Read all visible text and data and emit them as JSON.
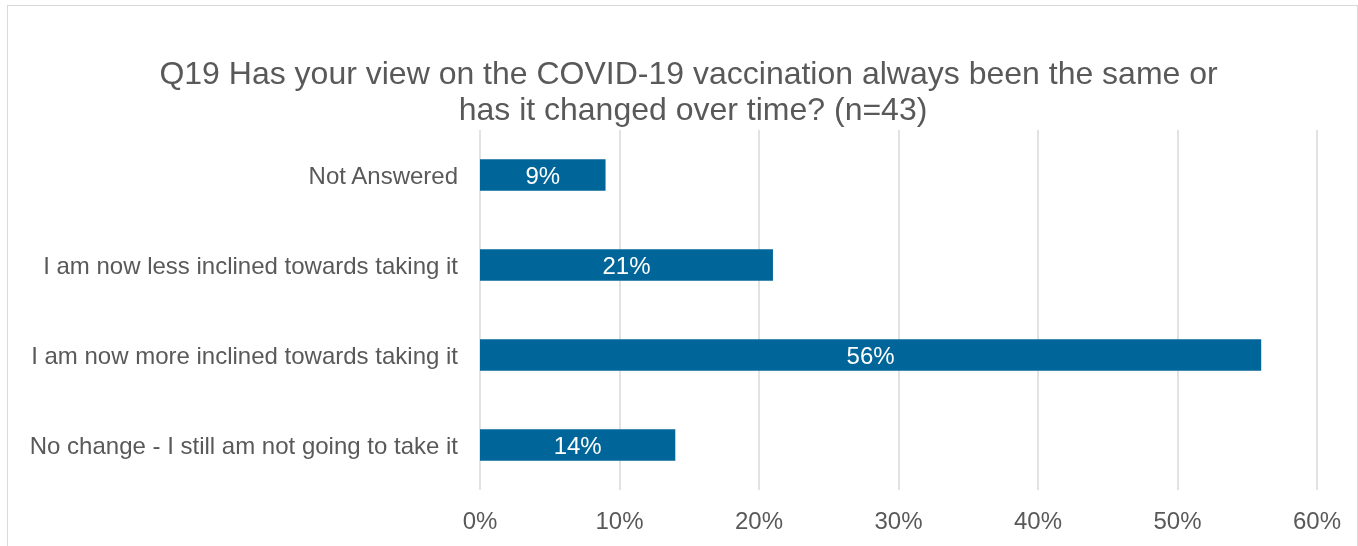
{
  "chart_data": {
    "type": "bar",
    "orientation": "horizontal",
    "title": "Q19 Has your view on the COVID-19 vaccination always been the same or has it changed over time? (n=43)",
    "categories": [
      "Not Answered",
      "I am now less inclined towards taking it",
      "I am now more inclined towards taking it",
      "No change - I still am not going to take it"
    ],
    "values": [
      9,
      21,
      56,
      14
    ],
    "value_labels": [
      "9%",
      "21%",
      "56%",
      "14%"
    ],
    "color": "#006699",
    "xlim": [
      0,
      60
    ],
    "xticks": [
      {
        "value": 0,
        "label": "0%"
      },
      {
        "value": 10,
        "label": "10%"
      },
      {
        "value": 20,
        "label": "20%"
      },
      {
        "value": 30,
        "label": "30%"
      },
      {
        "value": 40,
        "label": "40%"
      },
      {
        "value": 50,
        "label": "50%"
      },
      {
        "value": 60,
        "label": "60%"
      }
    ],
    "grid": "x"
  }
}
